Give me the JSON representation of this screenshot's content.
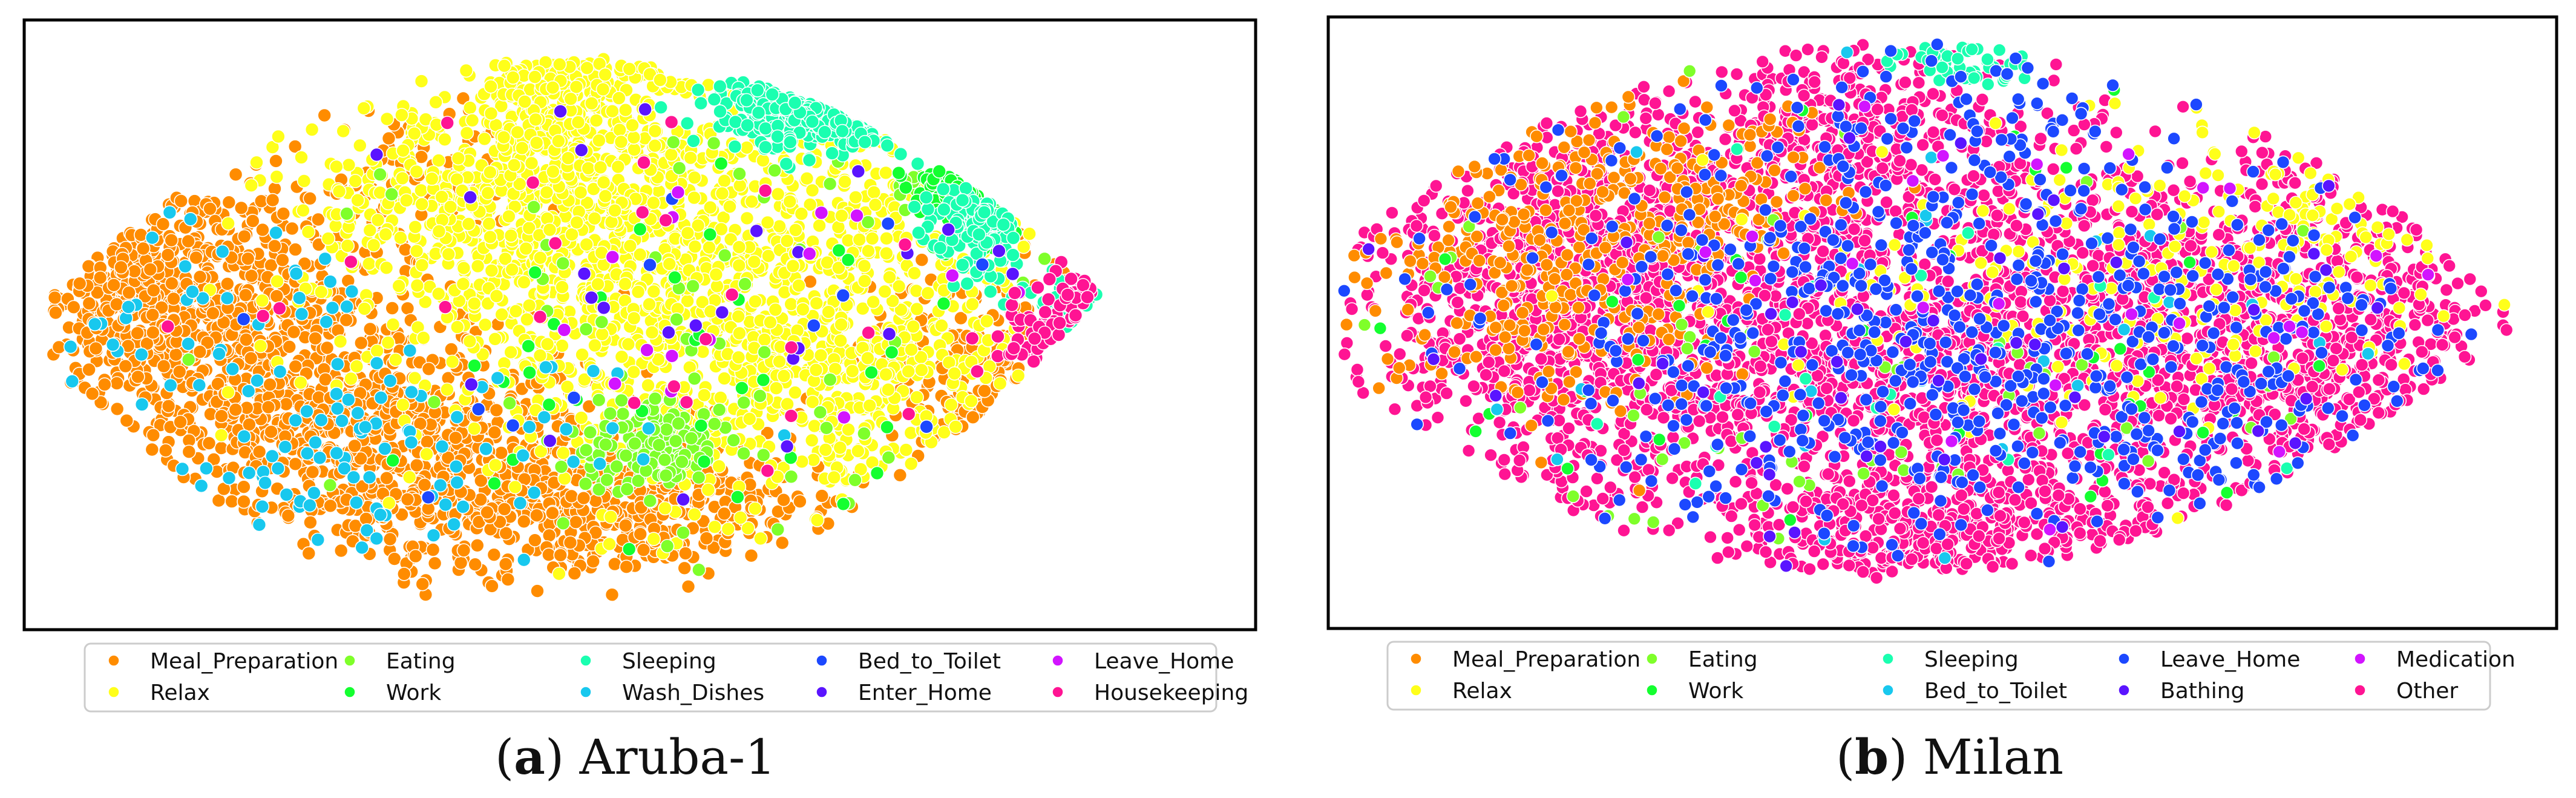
{
  "figure": {
    "panels": [
      {
        "id": "a",
        "caption_letter": "a",
        "caption_text": "Aruba-1",
        "legend": [
          {
            "label": "Meal_Preparation",
            "color": "#ff8c00"
          },
          {
            "label": "Relax",
            "color": "#ffff1a"
          },
          {
            "label": "Eating",
            "color": "#7fff2a"
          },
          {
            "label": "Work",
            "color": "#14ff30"
          },
          {
            "label": "Sleeping",
            "color": "#1affb0"
          },
          {
            "label": "Wash_Dishes",
            "color": "#18c8ee"
          },
          {
            "label": "Bed_to_Toilet",
            "color": "#1c48ff"
          },
          {
            "label": "Enter_Home",
            "color": "#5a14ff"
          },
          {
            "label": "Leave_Home",
            "color": "#d214ff"
          },
          {
            "label": "Housekeeping",
            "color": "#ff1493"
          }
        ]
      },
      {
        "id": "b",
        "caption_letter": "b",
        "caption_text": "Milan",
        "legend": [
          {
            "label": "Meal_Preparation",
            "color": "#ff8c00"
          },
          {
            "label": "Relax",
            "color": "#ffff1a"
          },
          {
            "label": "Eating",
            "color": "#7fff2a"
          },
          {
            "label": "Work",
            "color": "#14ff30"
          },
          {
            "label": "Sleeping",
            "color": "#1affb0"
          },
          {
            "label": "Bed_to_Toilet",
            "color": "#18c8ee"
          },
          {
            "label": "Leave_Home",
            "color": "#1c48ff"
          },
          {
            "label": "Bathing",
            "color": "#5a14ff"
          },
          {
            "label": "Medication",
            "color": "#d214ff"
          },
          {
            "label": "Other",
            "color": "#ff1493"
          }
        ]
      }
    ]
  },
  "chart_data": [
    {
      "type": "scatter",
      "title": "",
      "xlabel": "",
      "ylabel": "",
      "axes_visible": false,
      "grid": false,
      "legend_position": "below",
      "legend_columns": 5,
      "series": [
        {
          "name": "Meal_Preparation",
          "color": "#ff8c00",
          "clusters": [
            {
              "cx": 0.17,
              "cy": 0.5,
              "sx": 0.08,
              "sy": 0.12,
              "n": 650
            },
            {
              "cx": 0.45,
              "cy": 0.8,
              "sx": 0.12,
              "sy": 0.06,
              "n": 600
            },
            {
              "cx": 0.3,
              "cy": 0.68,
              "sx": 0.09,
              "sy": 0.08,
              "n": 500
            },
            {
              "cx": 0.1,
              "cy": 0.42,
              "sx": 0.04,
              "sy": 0.1,
              "n": 250
            },
            {
              "cx": 0.79,
              "cy": 0.6,
              "sx": 0.05,
              "sy": 0.1,
              "n": 200
            },
            {
              "cx": 0.33,
              "cy": 0.25,
              "sx": 0.05,
              "sy": 0.05,
              "n": 80
            }
          ]
        },
        {
          "name": "Relax",
          "color": "#ffff1a",
          "clusters": [
            {
              "cx": 0.55,
              "cy": 0.4,
              "sx": 0.13,
              "sy": 0.17,
              "n": 1300
            },
            {
              "cx": 0.37,
              "cy": 0.3,
              "sx": 0.07,
              "sy": 0.1,
              "n": 350
            },
            {
              "cx": 0.44,
              "cy": 0.15,
              "sx": 0.04,
              "sy": 0.07,
              "n": 250
            },
            {
              "cx": 0.67,
              "cy": 0.6,
              "sx": 0.06,
              "sy": 0.1,
              "n": 250
            }
          ]
        },
        {
          "name": "Eating",
          "color": "#7fff2a",
          "clusters": [
            {
              "cx": 0.51,
              "cy": 0.7,
              "sx": 0.03,
              "sy": 0.04,
              "n": 140
            },
            {
              "cx": 0.76,
              "cy": 0.27,
              "sx": 0.02,
              "sy": 0.03,
              "n": 50
            },
            {
              "cx": 0.55,
              "cy": 0.55,
              "sx": 0.15,
              "sy": 0.2,
              "n": 60
            }
          ]
        },
        {
          "name": "Work",
          "color": "#14ff30",
          "clusters": [
            {
              "cx": 0.8,
              "cy": 0.26,
              "sx": 0.03,
              "sy": 0.03,
              "n": 150
            },
            {
              "cx": 0.6,
              "cy": 0.5,
              "sx": 0.15,
              "sy": 0.2,
              "n": 40
            }
          ]
        },
        {
          "name": "Sleeping",
          "color": "#1affb0",
          "clusters": [
            {
              "cx": 0.68,
              "cy": 0.14,
              "sx": 0.05,
              "sy": 0.03,
              "n": 260
            },
            {
              "cx": 0.78,
              "cy": 0.33,
              "sx": 0.02,
              "sy": 0.05,
              "n": 120
            },
            {
              "cx": 0.87,
              "cy": 0.47,
              "sx": 0.03,
              "sy": 0.04,
              "n": 40
            }
          ]
        },
        {
          "name": "Wash_Dishes",
          "color": "#18c8ee",
          "clusters": [
            {
              "cx": 0.3,
              "cy": 0.7,
              "sx": 0.12,
              "sy": 0.08,
              "n": 90
            },
            {
              "cx": 0.16,
              "cy": 0.5,
              "sx": 0.07,
              "sy": 0.1,
              "n": 40
            }
          ]
        },
        {
          "name": "Bed_to_Toilet",
          "color": "#1c48ff",
          "clusters": [
            {
              "cx": 0.55,
              "cy": 0.5,
              "sx": 0.2,
              "sy": 0.2,
              "n": 12
            }
          ]
        },
        {
          "name": "Enter_Home",
          "color": "#5a14ff",
          "clusters": [
            {
              "cx": 0.6,
              "cy": 0.4,
              "sx": 0.15,
              "sy": 0.2,
              "n": 25
            }
          ]
        },
        {
          "name": "Leave_Home",
          "color": "#d214ff",
          "clusters": [
            {
              "cx": 0.7,
              "cy": 0.45,
              "sx": 0.15,
              "sy": 0.2,
              "n": 15
            }
          ]
        },
        {
          "name": "Housekeeping",
          "color": "#ff1493",
          "clusters": [
            {
              "cx": 0.88,
              "cy": 0.52,
              "sx": 0.04,
              "sy": 0.05,
              "n": 70
            },
            {
              "cx": 0.5,
              "cy": 0.5,
              "sx": 0.25,
              "sy": 0.25,
              "n": 25
            }
          ]
        }
      ]
    },
    {
      "type": "scatter",
      "title": "",
      "xlabel": "",
      "ylabel": "",
      "axes_visible": false,
      "grid": false,
      "legend_position": "below",
      "legend_columns": 5,
      "series": [
        {
          "name": "Other",
          "color": "#ff1493",
          "clusters": [
            {
              "cx": 0.2,
              "cy": 0.45,
              "sx": 0.09,
              "sy": 0.17,
              "n": 1200
            },
            {
              "cx": 0.47,
              "cy": 0.55,
              "sx": 0.12,
              "sy": 0.2,
              "n": 1300
            },
            {
              "cx": 0.76,
              "cy": 0.52,
              "sx": 0.11,
              "sy": 0.16,
              "n": 1000
            },
            {
              "cx": 0.42,
              "cy": 0.18,
              "sx": 0.06,
              "sy": 0.08,
              "n": 300
            },
            {
              "cx": 0.5,
              "cy": 0.85,
              "sx": 0.1,
              "sy": 0.05,
              "n": 300
            }
          ]
        },
        {
          "name": "Meal_Preparation",
          "color": "#ff8c00",
          "clusters": [
            {
              "cx": 0.18,
              "cy": 0.38,
              "sx": 0.08,
              "sy": 0.13,
              "n": 350
            },
            {
              "cx": 0.32,
              "cy": 0.28,
              "sx": 0.06,
              "sy": 0.06,
              "n": 100
            }
          ]
        },
        {
          "name": "Relax",
          "color": "#ffff1a",
          "clusters": [
            {
              "cx": 0.65,
              "cy": 0.4,
              "sx": 0.14,
              "sy": 0.15,
              "n": 180
            },
            {
              "cx": 0.82,
              "cy": 0.35,
              "sx": 0.06,
              "sy": 0.1,
              "n": 80
            }
          ]
        },
        {
          "name": "Eating",
          "color": "#7fff2a",
          "clusters": [
            {
              "cx": 0.45,
              "cy": 0.6,
              "sx": 0.25,
              "sy": 0.22,
              "n": 60
            }
          ]
        },
        {
          "name": "Work",
          "color": "#14ff30",
          "clusters": [
            {
              "cx": 0.45,
              "cy": 0.55,
              "sx": 0.25,
              "sy": 0.22,
              "n": 40
            }
          ]
        },
        {
          "name": "Sleeping",
          "color": "#1affb0",
          "clusters": [
            {
              "cx": 0.52,
              "cy": 0.07,
              "sx": 0.03,
              "sy": 0.02,
              "n": 50
            },
            {
              "cx": 0.45,
              "cy": 0.55,
              "sx": 0.25,
              "sy": 0.25,
              "n": 20
            }
          ]
        },
        {
          "name": "Bed_to_Toilet",
          "color": "#18c8ee",
          "clusters": [
            {
              "cx": 0.5,
              "cy": 0.55,
              "sx": 0.25,
              "sy": 0.25,
              "n": 25
            }
          ]
        },
        {
          "name": "Leave_Home",
          "color": "#1c48ff",
          "clusters": [
            {
              "cx": 0.47,
              "cy": 0.55,
              "sx": 0.1,
              "sy": 0.16,
              "n": 300
            },
            {
              "cx": 0.72,
              "cy": 0.55,
              "sx": 0.1,
              "sy": 0.15,
              "n": 220
            },
            {
              "cx": 0.3,
              "cy": 0.45,
              "sx": 0.14,
              "sy": 0.2,
              "n": 150
            },
            {
              "cx": 0.54,
              "cy": 0.15,
              "sx": 0.08,
              "sy": 0.08,
              "n": 60
            }
          ]
        },
        {
          "name": "Bathing",
          "color": "#5a14ff",
          "clusters": [
            {
              "cx": 0.5,
              "cy": 0.55,
              "sx": 0.2,
              "sy": 0.2,
              "n": 50
            }
          ]
        },
        {
          "name": "Medication",
          "color": "#d214ff",
          "clusters": [
            {
              "cx": 0.6,
              "cy": 0.45,
              "sx": 0.2,
              "sy": 0.2,
              "n": 25
            }
          ]
        }
      ]
    }
  ]
}
